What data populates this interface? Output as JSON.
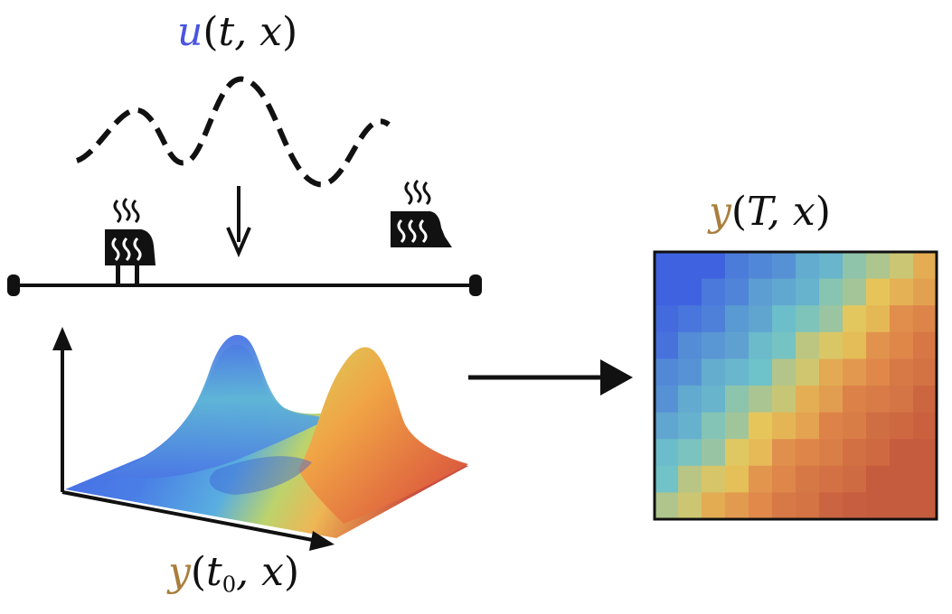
{
  "labels": {
    "control": {
      "func": "u",
      "open": "(",
      "args": "t, x",
      "close": ")"
    },
    "final_state": {
      "func": "y",
      "open": "(",
      "args": "T, x",
      "close": ")"
    },
    "initial_state": {
      "func": "y",
      "open": "(",
      "args_pre": "t",
      "args_sub": "0",
      "args_post": ", x",
      "close": ")"
    }
  },
  "colors": {
    "control_symbol": "#4a55e0",
    "state_symbol": "#a97e3c",
    "ink": "#111111"
  },
  "icons": [
    "heat-source-icon",
    "heat-source-icon"
  ],
  "heatmap": {
    "rows": 10,
    "cols": 12,
    "scale": {
      "low": "#3f63e0",
      "mid": "#6fc3c9",
      "midhigh": "#e6c75a",
      "high": "#e0884a",
      "max": "#c65c3e"
    }
  }
}
